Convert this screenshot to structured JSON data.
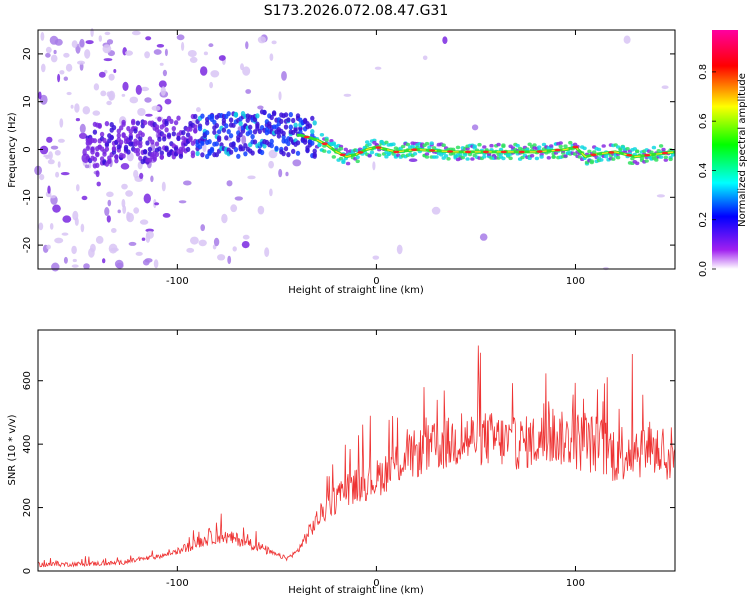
{
  "chart_data": [
    {
      "type": "heatmap",
      "title": "S173.2026.072.08.47.G31",
      "xlabel": "Height of straight line (km)",
      "ylabel": "Frequency (Hz)",
      "xlim": [
        -170,
        150
      ],
      "ylim": [
        -25,
        25
      ],
      "x_ticks": [
        -100,
        0,
        100
      ],
      "x_tick_labels": [
        "-100",
        "0",
        "100"
      ],
      "y_ticks": [
        -20,
        -10,
        0,
        10,
        20
      ],
      "y_tick_labels": [
        "-20",
        "-10",
        "0",
        "10",
        "20"
      ],
      "colorbar": {
        "label": "Normalized spectral amplitude",
        "range": [
          0,
          0.97
        ],
        "ticks": [
          0,
          0.2,
          0.4,
          0.6,
          0.8
        ],
        "tick_labels": [
          "0.0",
          "0.2",
          "0.4",
          "0.6",
          "0.8"
        ],
        "colors": [
          "#ffffff",
          "#a020f0",
          "#0000ff",
          "#00ffff",
          "#00ff00",
          "#ffff00",
          "#ff0000",
          "#ff00a0"
        ]
      },
      "ridge": {
        "description_points_x": [
          -170,
          -140,
          -110,
          -90,
          -70,
          -55,
          -45,
          -38,
          -30,
          -25,
          -20,
          -15,
          -10,
          -5,
          0,
          10,
          20,
          40,
          60,
          80,
          95,
          100,
          105,
          110,
          120,
          130,
          140,
          150
        ],
        "description_points_y": [
          0,
          1,
          2,
          3,
          3,
          3.5,
          3,
          3,
          2,
          1,
          -0.5,
          -1.5,
          -1,
          0,
          0.5,
          -0.5,
          0,
          -0.5,
          -0.5,
          -0.5,
          0,
          0.5,
          -1.5,
          -1,
          -0.5,
          -1.5,
          -1,
          -0.5
        ]
      }
    },
    {
      "type": "line",
      "xlabel": "Height of straight line (km)",
      "ylabel": "SNR (10 * v/v)",
      "xlim": [
        -170,
        150
      ],
      "ylim": [
        0,
        760
      ],
      "x_ticks": [
        -100,
        0,
        100
      ],
      "x_tick_labels": [
        "-100",
        "0",
        "100"
      ],
      "y_ticks": [
        0,
        200,
        400,
        600
      ],
      "y_tick_labels": [
        "0",
        "200",
        "400",
        "600"
      ],
      "color": "#ee3333",
      "series": [
        {
          "name": "SNR",
          "x": [
            -170,
            -150,
            -130,
            -110,
            -100,
            -90,
            -80,
            -70,
            -60,
            -50,
            -45,
            -40,
            -35,
            -30,
            -25,
            -20,
            -15,
            -10,
            -5,
            0,
            10,
            20,
            30,
            40,
            50,
            60,
            70,
            80,
            90,
            100,
            110,
            120,
            130,
            140,
            150
          ],
          "y": [
            20,
            22,
            25,
            45,
            60,
            90,
            110,
            100,
            80,
            50,
            40,
            60,
            110,
            160,
            200,
            230,
            260,
            270,
            280,
            290,
            340,
            370,
            390,
            410,
            420,
            415,
            400,
            410,
            420,
            410,
            400,
            370,
            390,
            380,
            360
          ]
        }
      ]
    }
  ]
}
